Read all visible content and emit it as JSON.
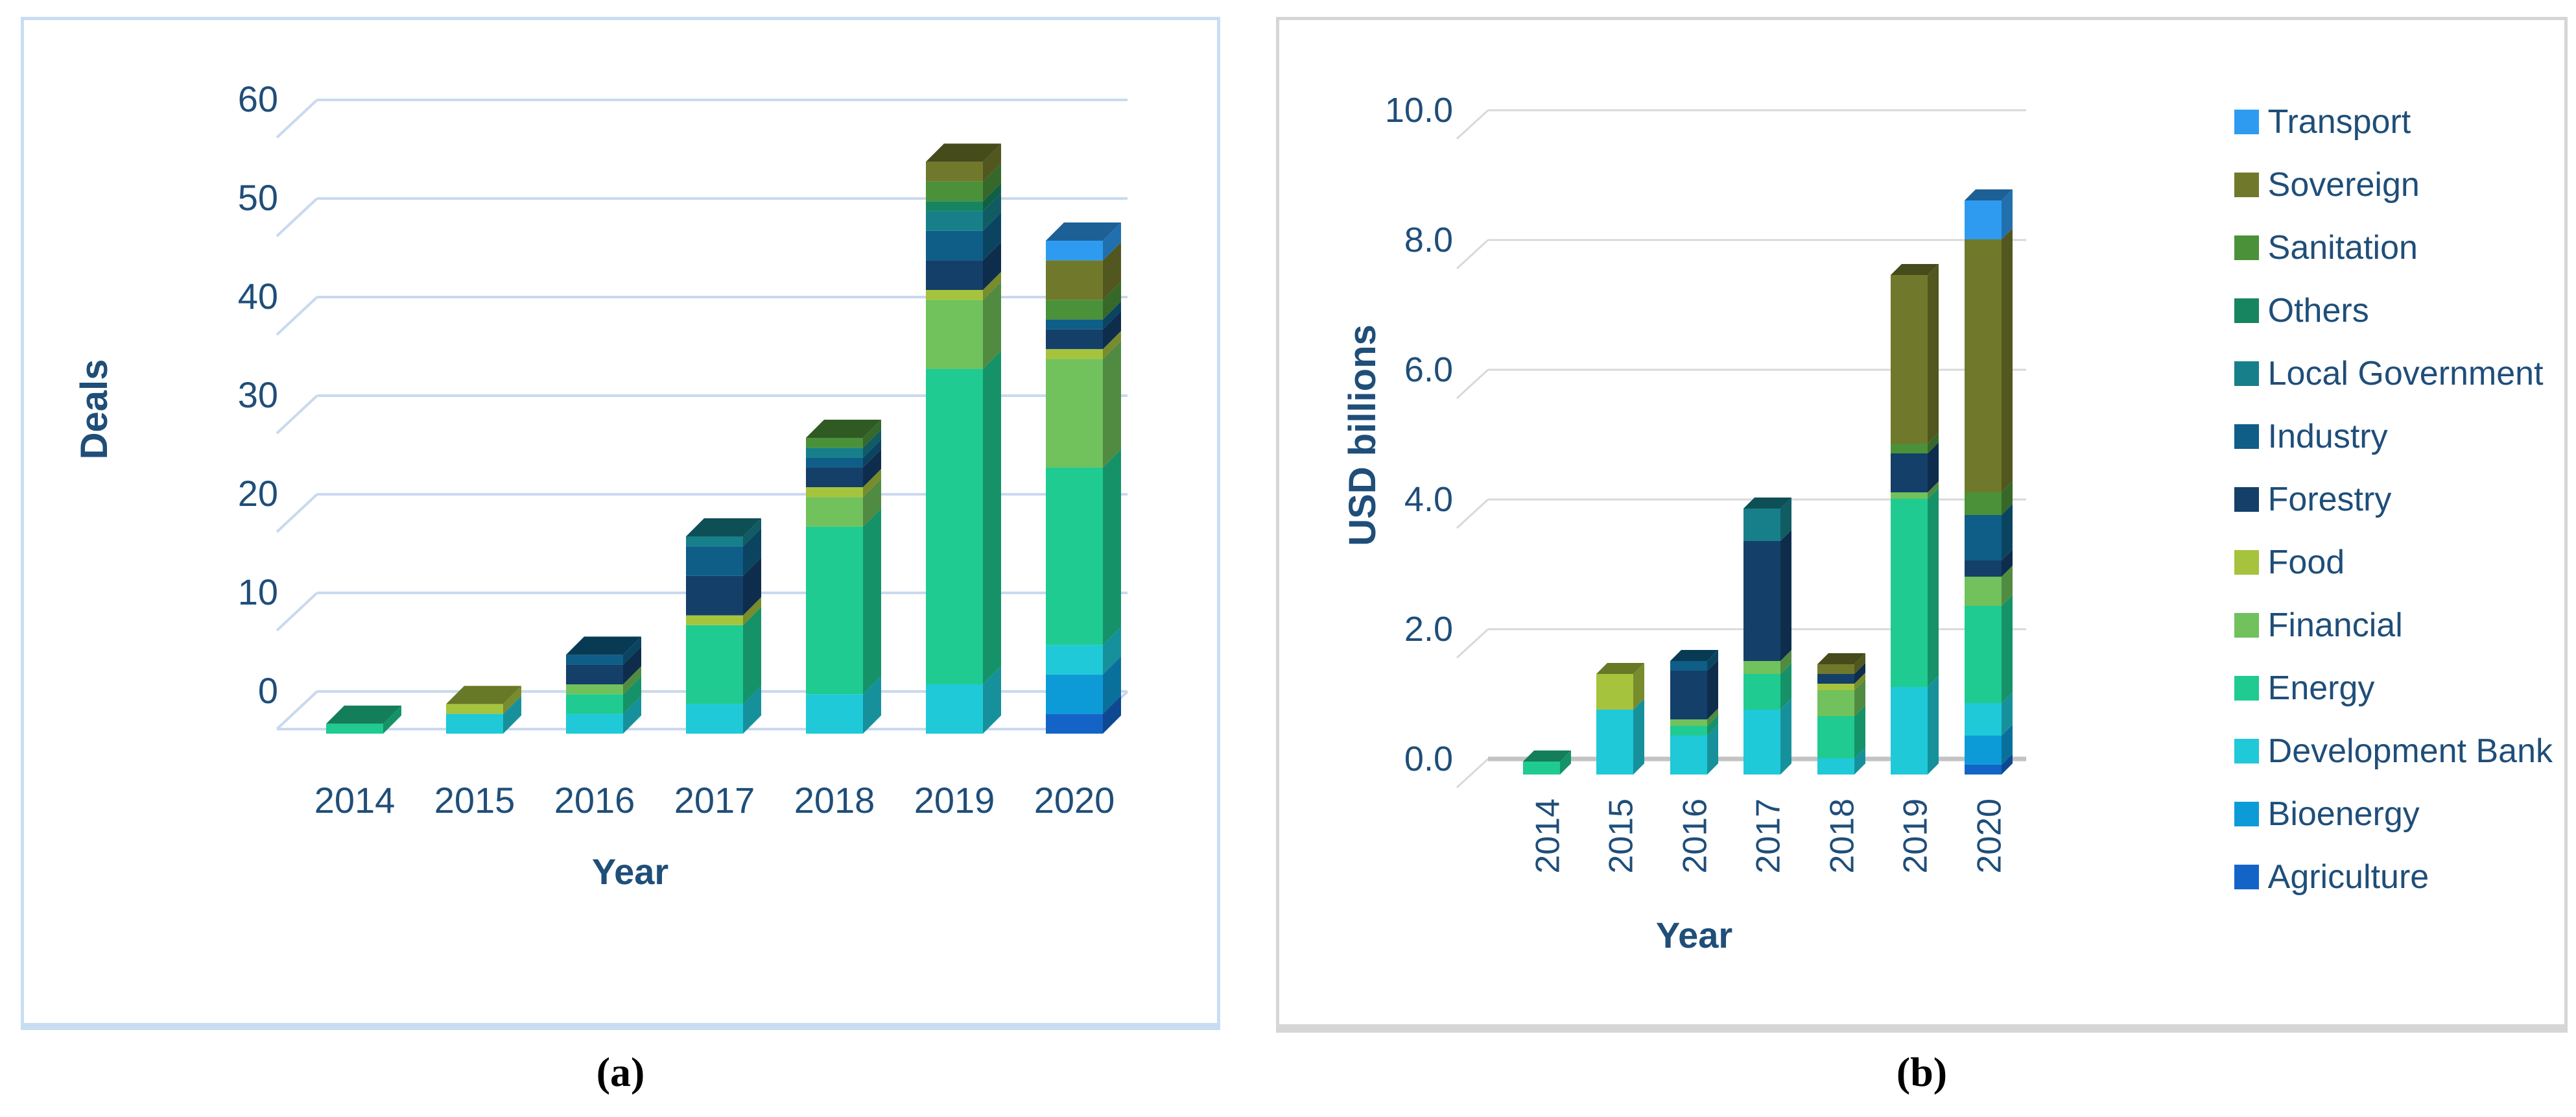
{
  "panel_a": {
    "caption": "(a)",
    "y_title": "Deals",
    "x_title": "Year"
  },
  "panel_b": {
    "caption": "(b)",
    "y_title": "USD billions",
    "x_title": "Year"
  },
  "colors": {
    "axis_text": "#1f4e79",
    "grid_a": "#c9d9ef",
    "grid_b": "#d9d9d9",
    "axis_line_b": "#c3c3c3",
    "panel_a_border": "#c9ddf2",
    "panel_b_border": "#d6d6d6",
    "caption_text": "#000000"
  },
  "chart_data": [
    {
      "type": "bar",
      "stacked": true,
      "effect": "3d",
      "panel": "a",
      "title": "(a)",
      "xlabel": "Year",
      "ylabel": "Deals",
      "ylim": [
        0,
        60
      ],
      "yticks": [
        "0",
        "10",
        "20",
        "30",
        "40",
        "50",
        "60"
      ],
      "grid": true,
      "legend_position": "none",
      "categories": [
        "2014",
        "2015",
        "2016",
        "2017",
        "2018",
        "2019",
        "2020"
      ],
      "series": [
        {
          "name": "Agriculture",
          "color": "#1464c8",
          "values": [
            0,
            0,
            0,
            0,
            0,
            0,
            2
          ]
        },
        {
          "name": "Bioenergy",
          "color": "#0d9bd8",
          "values": [
            0,
            0,
            0,
            0,
            0,
            0,
            4
          ]
        },
        {
          "name": "Development Bank",
          "color": "#1fc9d8",
          "values": [
            0,
            2,
            2,
            3,
            4,
            5,
            3
          ]
        },
        {
          "name": "Energy",
          "color": "#1fcb90",
          "values": [
            1,
            0,
            2,
            8,
            17,
            32,
            18
          ]
        },
        {
          "name": "Financial",
          "color": "#71c15c",
          "values": [
            0,
            0,
            1,
            0,
            3,
            7,
            11
          ]
        },
        {
          "name": "Food",
          "color": "#a6c33e",
          "values": [
            0,
            1,
            0,
            1,
            1,
            1,
            1
          ]
        },
        {
          "name": "Forestry",
          "color": "#143f69",
          "values": [
            0,
            0,
            2,
            4,
            2,
            3,
            2
          ]
        },
        {
          "name": "Industry",
          "color": "#0e5e87",
          "values": [
            0,
            0,
            1,
            3,
            1,
            3,
            1
          ]
        },
        {
          "name": "Local Government",
          "color": "#177f8a",
          "values": [
            0,
            0,
            0,
            1,
            1,
            2,
            0
          ]
        },
        {
          "name": "Others",
          "color": "#17855f",
          "values": [
            0,
            0,
            0,
            0,
            0,
            1,
            0
          ]
        },
        {
          "name": "Sanitation",
          "color": "#4b9139",
          "values": [
            0,
            0,
            0,
            0,
            1,
            2,
            2
          ]
        },
        {
          "name": "Sovereign",
          "color": "#70792b",
          "values": [
            0,
            0,
            0,
            0,
            0,
            2,
            4
          ]
        },
        {
          "name": "Transport",
          "color": "#2e9bf0",
          "values": [
            0,
            0,
            0,
            0,
            0,
            0,
            2
          ]
        }
      ]
    },
    {
      "type": "bar",
      "stacked": true,
      "effect": "3d",
      "panel": "b",
      "title": "(b)",
      "xlabel": "Year",
      "ylabel": "USD billions",
      "ylim": [
        0,
        10
      ],
      "yticks": [
        "0.0",
        "2.0",
        "4.0",
        "6.0",
        "8.0",
        "10.0"
      ],
      "grid": true,
      "legend_position": "right",
      "categories": [
        "2014",
        "2015",
        "2016",
        "2017",
        "2018",
        "2019",
        "2020"
      ],
      "series": [
        {
          "name": "Agriculture",
          "color": "#1464c8",
          "values": [
            0,
            0,
            0,
            0,
            0,
            0,
            0.15
          ]
        },
        {
          "name": "Bioenergy",
          "color": "#0d9bd8",
          "values": [
            0,
            0,
            0,
            0,
            0,
            0,
            0.45
          ]
        },
        {
          "name": "Development Bank",
          "color": "#1fc9d8",
          "values": [
            0,
            1.0,
            0.6,
            1.0,
            0.25,
            1.35,
            0.5
          ]
        },
        {
          "name": "Energy",
          "color": "#1fcb90",
          "values": [
            0.2,
            0,
            0.15,
            0.55,
            0.65,
            2.9,
            1.5
          ]
        },
        {
          "name": "Financial",
          "color": "#71c15c",
          "values": [
            0,
            0,
            0.1,
            0.2,
            0.4,
            0.1,
            0.45
          ]
        },
        {
          "name": "Food",
          "color": "#a6c33e",
          "values": [
            0,
            0.55,
            0,
            0,
            0.1,
            0,
            0
          ]
        },
        {
          "name": "Forestry",
          "color": "#143f69",
          "values": [
            0,
            0,
            0.75,
            1.85,
            0.15,
            0.6,
            0.25
          ]
        },
        {
          "name": "Industry",
          "color": "#0e5e87",
          "values": [
            0,
            0,
            0.15,
            0,
            0,
            0,
            0.7
          ]
        },
        {
          "name": "Local Government",
          "color": "#177f8a",
          "values": [
            0,
            0,
            0,
            0.5,
            0,
            0,
            0
          ]
        },
        {
          "name": "Others",
          "color": "#17855f",
          "values": [
            0,
            0,
            0,
            0,
            0,
            0,
            0
          ]
        },
        {
          "name": "Sanitation",
          "color": "#4b9139",
          "values": [
            0,
            0,
            0,
            0,
            0,
            0.15,
            0.35
          ]
        },
        {
          "name": "Sovereign",
          "color": "#70792b",
          "values": [
            0,
            0,
            0,
            0,
            0.15,
            2.6,
            3.9
          ]
        },
        {
          "name": "Transport",
          "color": "#2e9bf0",
          "values": [
            0,
            0,
            0,
            0,
            0,
            0,
            0.6
          ]
        }
      ],
      "legend_order_top_to_bottom": [
        "Transport",
        "Sovereign",
        "Sanitation",
        "Others",
        "Local Government",
        "Industry",
        "Forestry",
        "Food",
        "Financial",
        "Energy",
        "Development Bank",
        "Bioenergy",
        "Agriculture"
      ]
    }
  ]
}
